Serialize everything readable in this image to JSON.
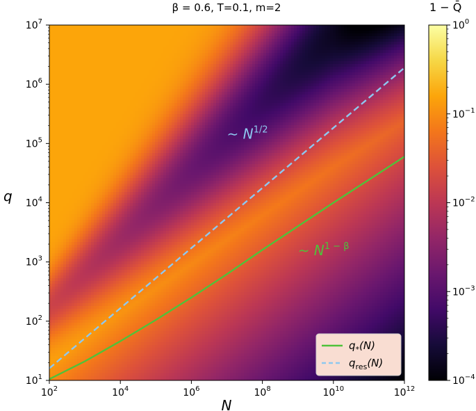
{
  "chart_data": {
    "type": "heatmap",
    "title": "β = 0.6, T=0.1, m=2",
    "xlabel": "N",
    "ylabel": "q",
    "colorbar_label": "1 − Q̄",
    "x_scale": "log",
    "y_scale": "log",
    "color_scale": "log",
    "xlim": [
      100,
      1000000000000
    ],
    "ylim": [
      10,
      10000000
    ],
    "clim": [
      0.0001,
      1
    ],
    "colormap": "inferno",
    "x_ticks": [
      {
        "value": 100,
        "base": "10",
        "exp": "2"
      },
      {
        "value": 10000,
        "base": "10",
        "exp": "4"
      },
      {
        "value": 1000000,
        "base": "10",
        "exp": "6"
      },
      {
        "value": 100000000,
        "base": "10",
        "exp": "8"
      },
      {
        "value": 10000000000,
        "base": "10",
        "exp": "10"
      },
      {
        "value": 1000000000000,
        "base": "10",
        "exp": "12"
      }
    ],
    "y_ticks": [
      {
        "value": 10,
        "base": "10",
        "exp": "1"
      },
      {
        "value": 100,
        "base": "10",
        "exp": "2"
      },
      {
        "value": 1000,
        "base": "10",
        "exp": "3"
      },
      {
        "value": 10000,
        "base": "10",
        "exp": "4"
      },
      {
        "value": 100000,
        "base": "10",
        "exp": "5"
      },
      {
        "value": 1000000,
        "base": "10",
        "exp": "6"
      },
      {
        "value": 10000000,
        "base": "10",
        "exp": "7"
      }
    ],
    "colorbar_ticks": [
      {
        "value": 1,
        "base": "10",
        "exp": "0"
      },
      {
        "value": 0.1,
        "base": "10",
        "exp": "−1"
      },
      {
        "value": 0.01,
        "base": "10",
        "exp": "−2"
      },
      {
        "value": 0.001,
        "base": "10",
        "exp": "−3"
      },
      {
        "value": 0.0001,
        "base": "10",
        "exp": "−4"
      }
    ],
    "series": [
      {
        "name": "q*(N)",
        "legend_main": "q",
        "legend_sub": "*",
        "legend_tail": "(N)",
        "color": "#4fc23a",
        "style": "solid",
        "x": [
          100,
          1000,
          10000,
          100000,
          1000000,
          10000000,
          100000000,
          1000000000,
          10000000000,
          100000000000,
          1000000000000
        ],
        "y": [
          10.5,
          21,
          46,
          105,
          250,
          620,
          1600,
          4000,
          10000,
          24500,
          60000
        ]
      },
      {
        "name": "q_res(N)",
        "legend_main": "q",
        "legend_sub": "res",
        "legend_tail": "(N)",
        "color": "#8ec8f0",
        "style": "dashed",
        "x": [
          100,
          1000000000000
        ],
        "y": [
          16,
          1900000
        ]
      }
    ],
    "annotations": [
      {
        "base": "∼ N",
        "sup": "1/2",
        "x": 10000000,
        "y": 120000,
        "color": "#8ec8f0"
      },
      {
        "base": "∼ N",
        "sup": "1 − β",
        "x": 1000000000,
        "y": 1300,
        "color": "#4fc23a"
      }
    ],
    "legend_position": "lower right",
    "colors": {
      "legend_background": "#f9ddd2",
      "legend_border": "#cfcfcf",
      "axis": "#000000"
    }
  }
}
